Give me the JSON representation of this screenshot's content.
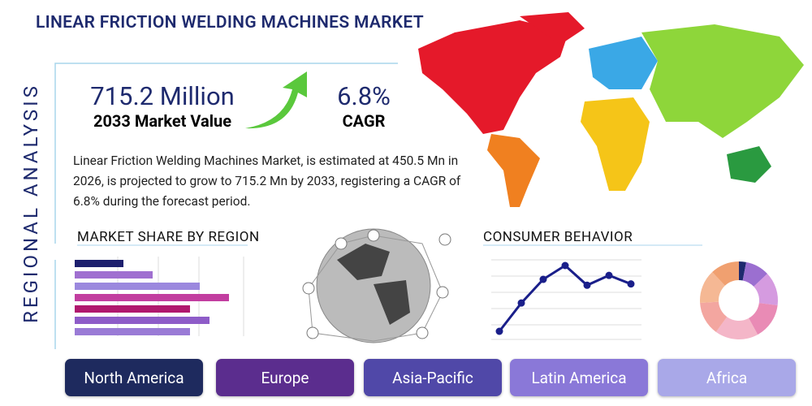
{
  "header": {
    "title": "LINEAR FRICTION WELDING MACHINES MARKET",
    "side_label": "REGIONAL ANALYSIS"
  },
  "stats": [
    {
      "value": "715.2 Million",
      "label": "2033 Market Value"
    },
    {
      "value": "6.8%",
      "label": "CAGR"
    }
  ],
  "description": "Linear Friction Welding Machines Market, is estimated at 450.5 Mn in 2026, is projected to grow to 715.2 Mn by 2033, registering a CAGR of 6.8% during the forecast period.",
  "market_share": {
    "title": "MARKET SHARE BY REGION",
    "values": [
      30,
      48,
      77,
      95,
      71,
      83,
      71
    ],
    "colors": [
      "#1d1f6e",
      "#a070d0",
      "#9b88de",
      "#c23ea0",
      "#b0186e",
      "#8e5cc8",
      "#9a7bd6"
    ]
  },
  "consumer_behavior": {
    "title": "CONSUMER BEHAVIOR",
    "values": [
      0,
      43,
      79,
      100,
      70,
      85,
      72
    ]
  },
  "donut": {
    "values": [
      3,
      10,
      14,
      15,
      18,
      14,
      14,
      12
    ],
    "colors": [
      "#1e2a6e",
      "#9b6fd0",
      "#d59be0",
      "#e98bb5",
      "#f4b6c8",
      "#f3a6a0",
      "#f5b894",
      "#f0a070"
    ]
  },
  "regions": [
    {
      "label": "North America",
      "color": "#1e2a5e"
    },
    {
      "label": "Europe",
      "color": "#5b2d8e"
    },
    {
      "label": "Asia-Pacific",
      "color": "#5048a8"
    },
    {
      "label": "Latin America",
      "color": "#8a78d8"
    },
    {
      "label": "Africa",
      "color": "#a9a8e8"
    }
  ]
}
